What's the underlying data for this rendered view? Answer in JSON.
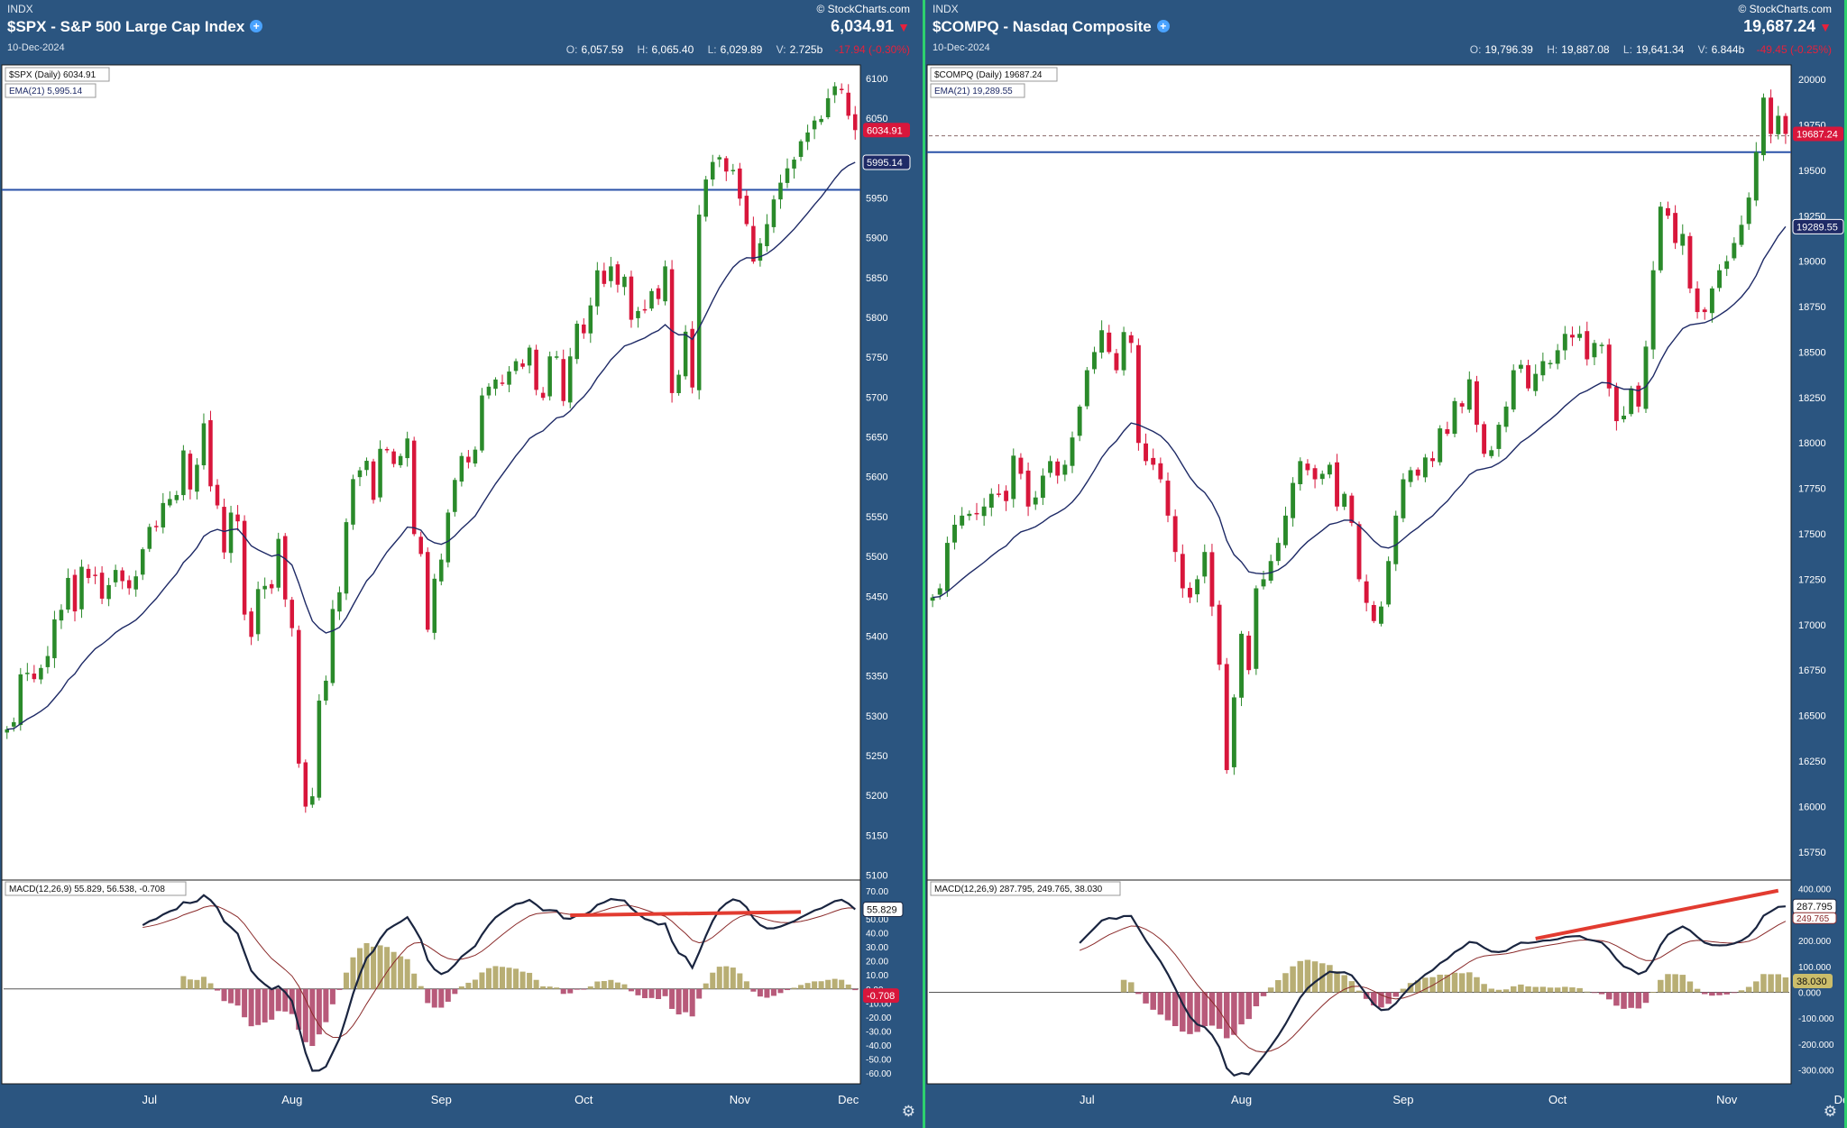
{
  "colors": {
    "up": "#2a8a2a",
    "down": "#d8163b",
    "ema": "#1e2a66",
    "macd": "#1a2540",
    "signal": "#8a2a2a",
    "hist_pos": "#b8ae74",
    "hist_neg": "#b85a7a",
    "divergence": "#e23b30",
    "hline": "#2a52a8",
    "bg": "#2b5580"
  },
  "panels": [
    {
      "exchange": "INDX",
      "title": "$SPX - S&P 500 Large Cap Index",
      "date": "10-Dec-2024",
      "brand": "© StockCharts.com",
      "last": "6,034.91",
      "ohlc": {
        "o": "6,057.59",
        "h": "6,065.40",
        "l": "6,029.89",
        "v": "2.725b",
        "chg": "-17.94 (-0.30%)"
      },
      "legend_price": "$SPX (Daily) 6034.91",
      "legend_ema": "EMA(21) 5,995.14",
      "legend_macd": "MACD(12,26,9) 55.829, 56.538, -0.708",
      "price_tag": "6034.91",
      "ema_tag": "5995.14",
      "macd_tag": "55.829",
      "hist_tag": "-0.708",
      "months": [
        "Jul",
        "Aug",
        "Sep",
        "Oct",
        "Nov",
        "Dec"
      ],
      "hline_value": 5960,
      "dashed_value": null
    },
    {
      "exchange": "INDX",
      "title": "$COMPQ - Nasdaq Composite",
      "date": "10-Dec-2024",
      "brand": "© StockCharts.com",
      "last": "19,687.24",
      "ohlc": {
        "o": "19,796.39",
        "h": "19,887.08",
        "l": "19,641.34",
        "v": "6.844b",
        "chg": "-49.45 (-0.25%)"
      },
      "legend_price": "$COMPQ (Daily) 19687.24",
      "legend_ema": "EMA(21) 19,289.55",
      "legend_macd": "MACD(12,26,9) 287.795, 249.765, 38.030",
      "price_tag": "19687.24",
      "ema_tag": "19289.55",
      "macd_tag": "287.795",
      "signal_tag": "249.765",
      "hist_tag": "38.030",
      "months": [
        "Jul",
        "Aug",
        "Sep",
        "Oct",
        "Nov",
        "Dec"
      ],
      "hline_value": 19600,
      "dashed_value": 19690
    }
  ],
  "chart_data": [
    {
      "type": "candlestick",
      "title": "$SPX (Daily)",
      "x_range": [
        "2024-06-03",
        "2024-12-10"
      ],
      "price_axis": {
        "ticks": [
          5100,
          5150,
          5200,
          5250,
          5300,
          5350,
          5400,
          5450,
          5500,
          5550,
          5600,
          5650,
          5700,
          5750,
          5800,
          5850,
          5900,
          5950,
          6000,
          6050,
          6100
        ],
        "ylim": [
          5095,
          6110
        ]
      },
      "closes": [
        5283,
        5292,
        5352,
        5354,
        5346,
        5360,
        5375,
        5421,
        5433,
        5473,
        5431,
        5487,
        5473,
        5477,
        5447,
        5464,
        5483,
        5469,
        5460,
        5475,
        5509,
        5537,
        5537,
        5567,
        5572,
        5577,
        5633,
        5584,
        5615,
        5667,
        5588,
        5564,
        5505,
        5555,
        5544,
        5427,
        5399,
        5459,
        5463,
        5460,
        5522,
        5446,
        5410,
        5240,
        5186,
        5199,
        5319,
        5344,
        5434,
        5455,
        5543,
        5597,
        5608,
        5620,
        5571,
        5635,
        5634,
        5616,
        5626,
        5648,
        5528,
        5503,
        5408,
        5472,
        5496,
        5555,
        5596,
        5626,
        5618,
        5634,
        5702,
        5713,
        5722,
        5718,
        5732,
        5745,
        5738,
        5762,
        5709,
        5699,
        5751,
        5751,
        5695,
        5751,
        5792,
        5780,
        5815,
        5859,
        5842,
        5864,
        5841,
        5851,
        5797,
        5808,
        5809,
        5833,
        5823,
        5864,
        5705,
        5728,
        5782,
        5712,
        5929,
        5973,
        5995,
        6001,
        5983,
        5985,
        5949,
        5917,
        5870,
        5893,
        5917,
        5948,
        5969,
        5987,
        5998,
        6021,
        6032,
        6047,
        6049,
        6075,
        6090,
        6086,
        6053,
        6035
      ],
      "ema21_end": 5995.14,
      "macd": {
        "line_end": 55.829,
        "signal_end": 56.538,
        "hist_end": -0.708,
        "ylim": [
          -65,
          75
        ],
        "ticks": [
          70,
          60,
          50,
          40,
          30,
          20,
          10,
          0,
          -10,
          -20,
          -30,
          -40,
          -50,
          -60
        ]
      }
    },
    {
      "type": "candlestick",
      "title": "$COMPQ (Daily)",
      "x_range": [
        "2024-06-03",
        "2024-12-10"
      ],
      "price_axis": {
        "ticks": [
          15750,
          16000,
          16250,
          16500,
          16750,
          17000,
          17250,
          17500,
          17750,
          18000,
          18250,
          18500,
          18750,
          19000,
          19250,
          19500,
          19750,
          20000
        ],
        "ylim": [
          15600,
          20050
        ]
      },
      "closes": [
        17150,
        17200,
        17450,
        17550,
        17600,
        17610,
        17610,
        17650,
        17720,
        17720,
        17680,
        17930,
        17830,
        17650,
        17700,
        17820,
        17900,
        17820,
        17880,
        18030,
        18200,
        18400,
        18500,
        18620,
        18500,
        18400,
        18610,
        18550,
        18000,
        17900,
        17880,
        17800,
        17600,
        17400,
        17200,
        17150,
        17250,
        17400,
        17100,
        16780,
        16200,
        16600,
        16950,
        16750,
        17200,
        17250,
        17350,
        17450,
        17600,
        17780,
        17900,
        17850,
        17800,
        17830,
        17880,
        17650,
        17720,
        17560,
        17250,
        17120,
        17020,
        17100,
        17350,
        17600,
        17800,
        17850,
        17820,
        17920,
        17900,
        18080,
        18050,
        18230,
        18200,
        18350,
        18100,
        17940,
        17960,
        18100,
        18200,
        18400,
        18430,
        18300,
        18380,
        18450,
        18440,
        18510,
        18600,
        18580,
        18600,
        18460,
        18550,
        18540,
        18300,
        18120,
        18150,
        18300,
        18200,
        18530,
        18950,
        19300,
        19250,
        19100,
        19150,
        18850,
        18720,
        18720,
        18850,
        18950,
        19000,
        19100,
        19200,
        19350,
        19600,
        19900,
        19700,
        19800,
        19700
      ],
      "ema21_end": 19289.55,
      "macd": {
        "line_end": 287.795,
        "signal_end": 249.765,
        "hist_end": 38.03,
        "ylim": [
          -340,
          420
        ],
        "ticks": [
          400,
          300,
          200,
          100,
          0,
          -100,
          -200,
          -300
        ]
      }
    }
  ]
}
